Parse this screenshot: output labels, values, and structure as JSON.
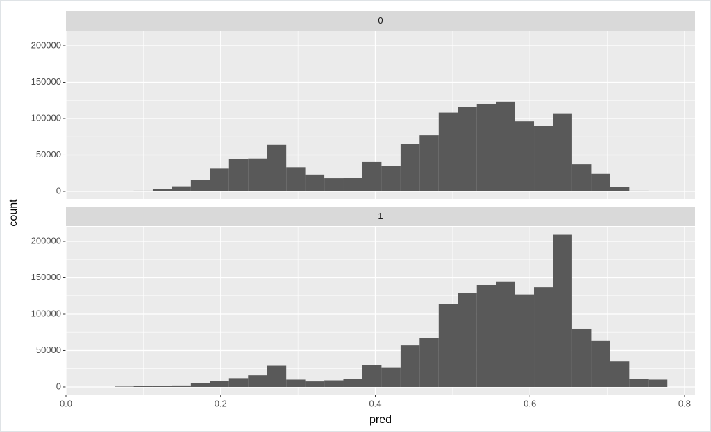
{
  "chart_data": {
    "type": "histogram",
    "xlabel": "pred",
    "ylabel": "count",
    "color": "#595959",
    "grid": true,
    "xlim": [
      0,
      0.8135
    ],
    "xticks": [
      {
        "value": 0,
        "label": "0.0"
      },
      0.2,
      0.4,
      0.6,
      0.8
    ],
    "ylim": [
      -10500,
      220000
    ],
    "yticks": [
      0,
      50000,
      100000,
      150000,
      200000
    ],
    "bins": [
      0.0629,
      0.0876,
      0.1122,
      0.1369,
      0.1615,
      0.1862,
      0.2108,
      0.2355,
      0.2601,
      0.2848,
      0.3094,
      0.3341,
      0.3587,
      0.3834,
      0.408,
      0.4327,
      0.4573,
      0.482,
      0.5066,
      0.5313,
      0.5559,
      0.5806,
      0.6052,
      0.6299,
      0.6545,
      0.6792,
      0.7038,
      0.7285,
      0.7531,
      0.7778
    ],
    "panels": [
      {
        "title": "0",
        "counts": [
          500,
          1000,
          3000,
          7000,
          16000,
          32000,
          44000,
          45000,
          64000,
          33000,
          23000,
          18000,
          19000,
          41000,
          35000,
          65000,
          77000,
          108000,
          116000,
          120000,
          123000,
          96000,
          90000,
          107000,
          37000,
          24000,
          6000,
          1000,
          500
        ]
      },
      {
        "title": "1",
        "counts": [
          500,
          1000,
          1500,
          2000,
          5000,
          8000,
          12000,
          16000,
          29000,
          10000,
          7500,
          9000,
          11000,
          30000,
          27000,
          57000,
          67000,
          114000,
          129000,
          140000,
          145000,
          127000,
          137000,
          209000,
          80000,
          63000,
          35000,
          11000,
          10000
        ]
      }
    ]
  }
}
